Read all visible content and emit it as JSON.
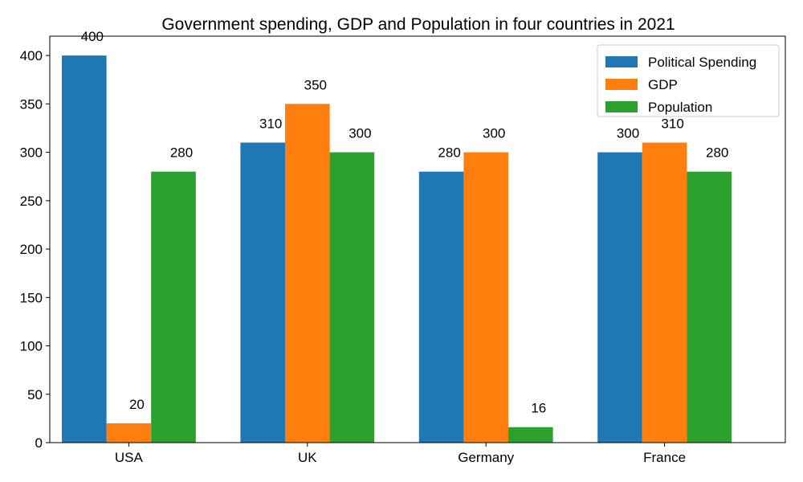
{
  "chart_data": {
    "type": "bar",
    "title": "Government spending, GDP and Population in four countries in 2021",
    "xlabel": "",
    "ylabel": "",
    "categories": [
      "USA",
      "UK",
      "Germany",
      "France"
    ],
    "series": [
      {
        "name": "Political Spending",
        "values": [
          400,
          310,
          280,
          300
        ],
        "color": "#1f77b4"
      },
      {
        "name": "GDP",
        "values": [
          20,
          350,
          300,
          310
        ],
        "color": "#ff7f0e"
      },
      {
        "name": "Population",
        "values": [
          280,
          300,
          16,
          280
        ],
        "color": "#2ca02c"
      }
    ],
    "ylim": [
      0,
      420
    ],
    "yticks": [
      0,
      50,
      100,
      150,
      200,
      250,
      300,
      350,
      400
    ],
    "grid": false,
    "legend_position": "top-right",
    "data_labels": true
  }
}
